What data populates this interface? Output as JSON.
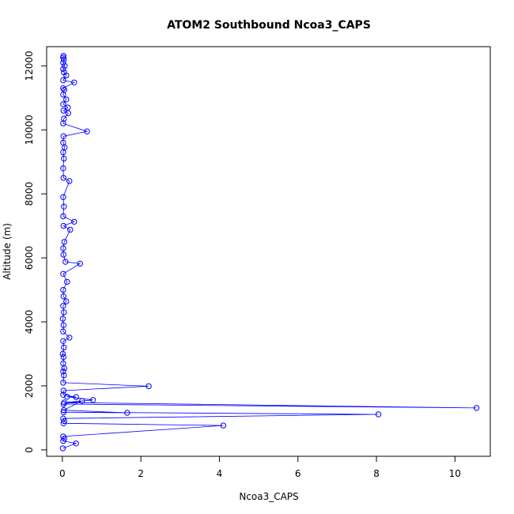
{
  "chart_data": {
    "type": "scatter",
    "connected": true,
    "title": "ATOM2 Southbound Ncoa3_CAPS",
    "xlabel": "Ncoa3_CAPS",
    "ylabel": "Altitude (m)",
    "xlim": [
      -0.4,
      10.9
    ],
    "ylim": [
      -200,
      12600
    ],
    "xticks": [
      0,
      2,
      4,
      6,
      8,
      10
    ],
    "yticks": [
      0,
      2000,
      4000,
      6000,
      8000,
      10000,
      12000
    ],
    "grid": false,
    "legend": "none",
    "series_color": "#0000ff",
    "series": [
      {
        "points": [
          [
            0.01,
            50
          ],
          [
            0.35,
            200
          ],
          [
            0.02,
            280
          ],
          [
            0.05,
            350
          ],
          [
            0.02,
            420
          ],
          [
            4.1,
            760
          ],
          [
            0.03,
            830
          ],
          [
            0.05,
            900
          ],
          [
            0.02,
            980
          ],
          [
            8.05,
            1110
          ],
          [
            0.03,
            1180
          ],
          [
            1.65,
            1160
          ],
          [
            0.04,
            1240
          ],
          [
            0.5,
            1530
          ],
          [
            0.03,
            1430
          ],
          [
            10.55,
            1310
          ],
          [
            0.05,
            1480
          ],
          [
            0.78,
            1560
          ],
          [
            0.12,
            1660
          ],
          [
            0.35,
            1650
          ],
          [
            0.02,
            1720
          ],
          [
            0.03,
            1850
          ],
          [
            2.2,
            1990
          ],
          [
            0.02,
            2100
          ],
          [
            0.04,
            2330
          ],
          [
            0.02,
            2450
          ],
          [
            0.05,
            2550
          ],
          [
            0.02,
            2700
          ],
          [
            0.03,
            2900
          ],
          [
            0.01,
            3000
          ],
          [
            0.04,
            3200
          ],
          [
            0.02,
            3400
          ],
          [
            0.18,
            3510
          ],
          [
            0.02,
            3700
          ],
          [
            0.03,
            3900
          ],
          [
            0.01,
            4100
          ],
          [
            0.04,
            4300
          ],
          [
            0.02,
            4500
          ],
          [
            0.1,
            4640
          ],
          [
            0.03,
            4800
          ],
          [
            0.02,
            5000
          ],
          [
            0.12,
            5250
          ],
          [
            0.02,
            5500
          ],
          [
            0.45,
            5820
          ],
          [
            0.08,
            5880
          ],
          [
            0.03,
            6100
          ],
          [
            0.02,
            6300
          ],
          [
            0.05,
            6500
          ],
          [
            0.2,
            6880
          ],
          [
            0.03,
            7000
          ],
          [
            0.3,
            7130
          ],
          [
            0.02,
            7300
          ],
          [
            0.04,
            7600
          ],
          [
            0.02,
            7900
          ],
          [
            0.18,
            8400
          ],
          [
            0.03,
            8500
          ],
          [
            0.02,
            8800
          ],
          [
            0.04,
            9100
          ],
          [
            0.02,
            9300
          ],
          [
            0.06,
            9450
          ],
          [
            0.02,
            9600
          ],
          [
            0.03,
            9800
          ],
          [
            0.63,
            9950
          ],
          [
            0.02,
            10200
          ],
          [
            0.04,
            10350
          ],
          [
            0.15,
            10520
          ],
          [
            0.03,
            10600
          ],
          [
            0.14,
            10700
          ],
          [
            0.02,
            10800
          ],
          [
            0.1,
            10950
          ],
          [
            0.02,
            11100
          ],
          [
            0.05,
            11250
          ],
          [
            0.02,
            11300
          ],
          [
            0.3,
            11480
          ],
          [
            0.02,
            11550
          ],
          [
            0.1,
            11700
          ],
          [
            0.04,
            11800
          ],
          [
            0.02,
            11900
          ],
          [
            0.06,
            12000
          ],
          [
            0.02,
            12100
          ],
          [
            0.04,
            12200
          ],
          [
            0.02,
            12260
          ],
          [
            0.03,
            12310
          ]
        ]
      }
    ]
  }
}
